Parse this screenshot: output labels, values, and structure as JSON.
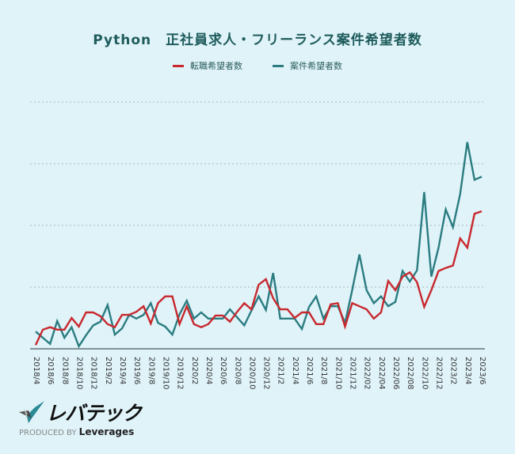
{
  "chart_data": {
    "type": "line",
    "title": "Python　正社員求人・フリーランス案件希望者数",
    "xlabel": "",
    "ylabel": "",
    "ylim": [
      0,
      400
    ],
    "y_tick_labels_shown": false,
    "grid": "horizontal dotted",
    "legend_placement": "top-center",
    "x_tick_labels": [
      "2018/4",
      "2018/6",
      "2018/8",
      "2018/10",
      "2018/12",
      "2019/2",
      "2019/4",
      "2019/6",
      "2019/8",
      "2019/10",
      "2019/12",
      "2020/2",
      "2020/4",
      "2020/6",
      "2020/8",
      "2020/10",
      "2020/12",
      "2021/2",
      "2021/4",
      "2021/6",
      "2021/8",
      "2021/10",
      "2021/12",
      "2022/02",
      "2022/04",
      "2022/06",
      "2022/08",
      "2022/10",
      "2022/12",
      "2023/2",
      "2023/4",
      "2023/6"
    ],
    "x_start": "2018/4",
    "x_end": "2023/6",
    "x_interval": "monthly",
    "series": [
      {
        "name": "転職希望者数",
        "color": "#c8282d",
        "values": [
          6,
          31,
          35,
          31,
          31,
          50,
          36,
          59,
          59,
          53,
          40,
          35,
          55,
          55,
          60,
          69,
          41,
          74,
          85,
          85,
          40,
          69,
          40,
          35,
          40,
          54,
          54,
          44,
          60,
          74,
          64,
          104,
          113,
          82,
          64,
          64,
          50,
          59,
          59,
          40,
          40,
          72,
          74,
          36,
          74,
          69,
          64,
          49,
          59,
          110,
          95,
          117,
          124,
          108,
          68,
          95,
          126,
          131,
          135,
          179,
          164,
          219,
          223
        ]
      },
      {
        "name": "案件希望者数",
        "color": "#2a7c80",
        "values": [
          28,
          18,
          8,
          45,
          18,
          35,
          4,
          22,
          38,
          44,
          71,
          23,
          33,
          55,
          49,
          55,
          74,
          42,
          36,
          23,
          56,
          78,
          49,
          59,
          49,
          49,
          49,
          64,
          51,
          38,
          62,
          85,
          63,
          123,
          49,
          49,
          49,
          32,
          68,
          85,
          49,
          69,
          69,
          42,
          95,
          153,
          95,
          74,
          85,
          69,
          76,
          126,
          109,
          127,
          254,
          117,
          164,
          226,
          197,
          251,
          335,
          274,
          279
        ]
      }
    ]
  },
  "brand": {
    "logo_text": "レバテック",
    "produced_by": "PRODUCED BY",
    "company": "Leverages"
  },
  "colors": {
    "background": "#dff3f9",
    "title": "#1f5c5c"
  }
}
